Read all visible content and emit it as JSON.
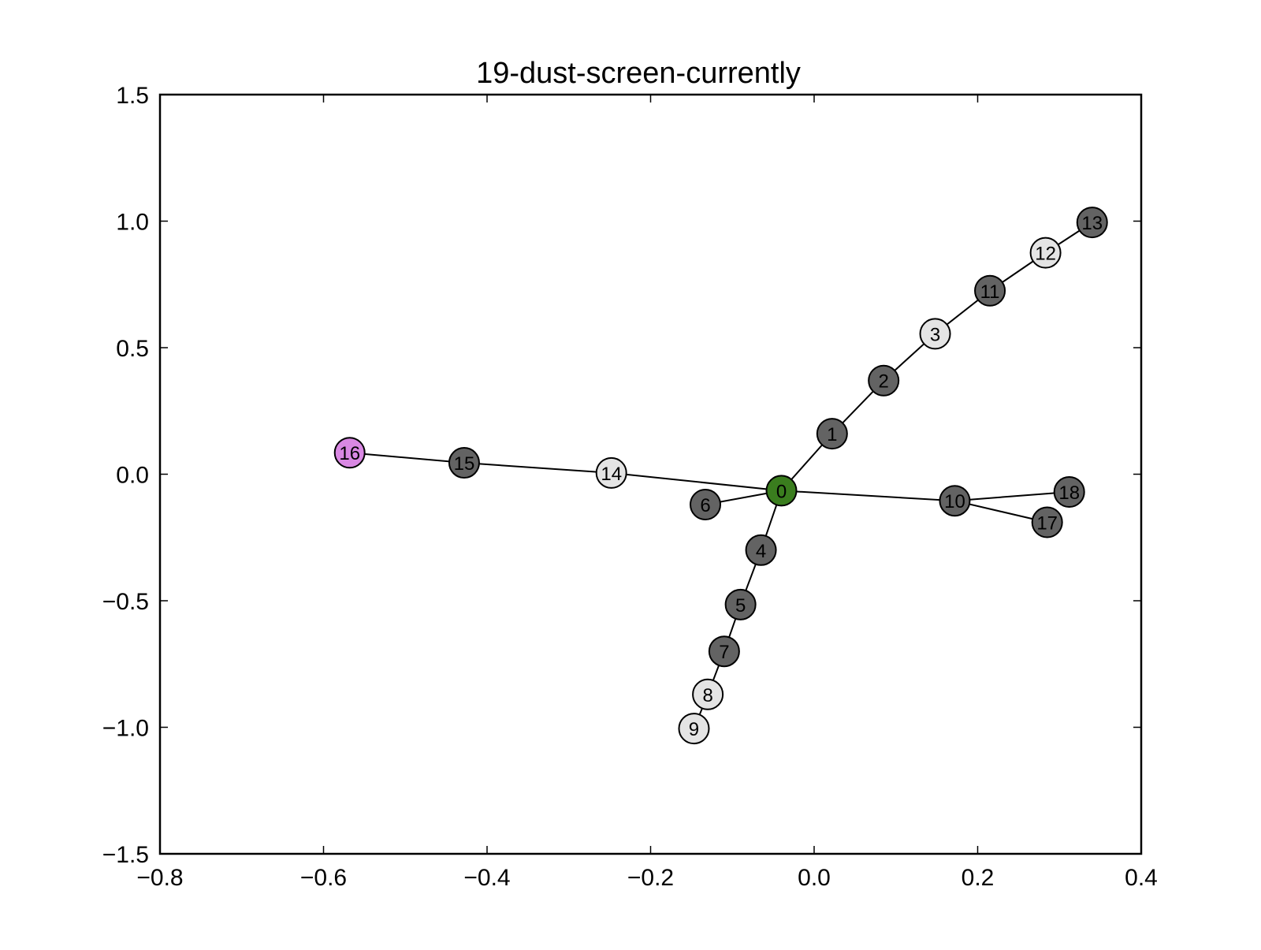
{
  "chart_data": {
    "type": "scatter",
    "title": "19-dust-screen-currently",
    "xlabel": "",
    "ylabel": "",
    "xlim": [
      -0.8,
      0.4
    ],
    "ylim": [
      -1.5,
      1.5
    ],
    "xticks": [
      -0.8,
      -0.6,
      -0.4,
      -0.2,
      0.0,
      0.2,
      0.4
    ],
    "xtick_labels": [
      "−0.8",
      "−0.6",
      "−0.4",
      "−0.2",
      "0.0",
      "0.2",
      "0.4"
    ],
    "yticks": [
      1.5,
      1.0,
      0.5,
      0.0,
      -0.5,
      -1.0,
      -1.5
    ],
    "ytick_labels": [
      "1.5",
      "1.0",
      "0.5",
      "0.0",
      "−0.5",
      "−1.0",
      "−1.5"
    ],
    "grid": false,
    "colors": {
      "root": "#3a7d1e",
      "dark": "#636363",
      "light": "#e4e4e4",
      "pink": "#d988e3"
    },
    "nodes": [
      {
        "id": "0",
        "x": -0.04,
        "y": -0.065,
        "color": "root"
      },
      {
        "id": "1",
        "x": 0.022,
        "y": 0.16,
        "color": "dark"
      },
      {
        "id": "2",
        "x": 0.085,
        "y": 0.37,
        "color": "dark"
      },
      {
        "id": "3",
        "x": 0.148,
        "y": 0.555,
        "color": "light"
      },
      {
        "id": "4",
        "x": -0.065,
        "y": -0.3,
        "color": "dark"
      },
      {
        "id": "5",
        "x": -0.09,
        "y": -0.515,
        "color": "dark"
      },
      {
        "id": "6",
        "x": -0.133,
        "y": -0.12,
        "color": "dark"
      },
      {
        "id": "7",
        "x": -0.11,
        "y": -0.7,
        "color": "dark"
      },
      {
        "id": "8",
        "x": -0.13,
        "y": -0.87,
        "color": "light"
      },
      {
        "id": "9",
        "x": -0.147,
        "y": -1.005,
        "color": "light"
      },
      {
        "id": "10",
        "x": 0.172,
        "y": -0.105,
        "color": "dark"
      },
      {
        "id": "11",
        "x": 0.215,
        "y": 0.725,
        "color": "dark"
      },
      {
        "id": "12",
        "x": 0.283,
        "y": 0.875,
        "color": "light"
      },
      {
        "id": "13",
        "x": 0.34,
        "y": 0.995,
        "color": "dark"
      },
      {
        "id": "14",
        "x": -0.248,
        "y": 0.005,
        "color": "light"
      },
      {
        "id": "15",
        "x": -0.428,
        "y": 0.045,
        "color": "dark"
      },
      {
        "id": "16",
        "x": -0.568,
        "y": 0.085,
        "color": "pink"
      },
      {
        "id": "17",
        "x": 0.285,
        "y": -0.19,
        "color": "dark"
      },
      {
        "id": "18",
        "x": 0.312,
        "y": -0.07,
        "color": "dark"
      }
    ],
    "edges": [
      [
        "0",
        "1"
      ],
      [
        "1",
        "2"
      ],
      [
        "2",
        "3"
      ],
      [
        "3",
        "11"
      ],
      [
        "11",
        "12"
      ],
      [
        "12",
        "13"
      ],
      [
        "0",
        "4"
      ],
      [
        "4",
        "5"
      ],
      [
        "5",
        "7"
      ],
      [
        "7",
        "8"
      ],
      [
        "8",
        "9"
      ],
      [
        "0",
        "6"
      ],
      [
        "0",
        "10"
      ],
      [
        "10",
        "18"
      ],
      [
        "10",
        "17"
      ],
      [
        "0",
        "14"
      ],
      [
        "14",
        "15"
      ],
      [
        "15",
        "16"
      ]
    ]
  }
}
